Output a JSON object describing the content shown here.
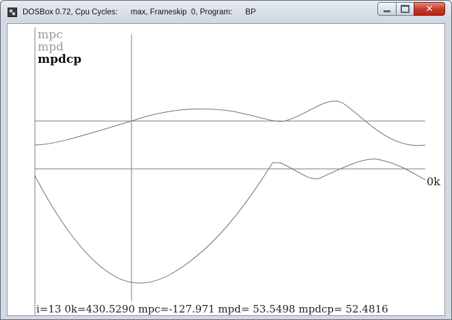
{
  "window": {
    "title": "DOSBox 0.72, Cpu Cycles:      max, Frameskip  0, Program:      BP",
    "controls": [
      "minimize",
      "maximize",
      "close"
    ],
    "close_glyph": "✕"
  },
  "screen": {
    "legend": [
      "mpc",
      "mpd",
      "mpdcp"
    ],
    "legend_colors": [
      "#9a9a9a",
      "#9a9a9a",
      "#111111"
    ],
    "ok_label": "0k",
    "status_line": "i=13 0k=430.5290 mpc=-127.971   mpd= 53.5498    mpdcp= 52.4816"
  },
  "colors": {
    "screen_bg": "#ffffff",
    "plot_line": "#6e6e6e",
    "text": "#222222"
  }
}
